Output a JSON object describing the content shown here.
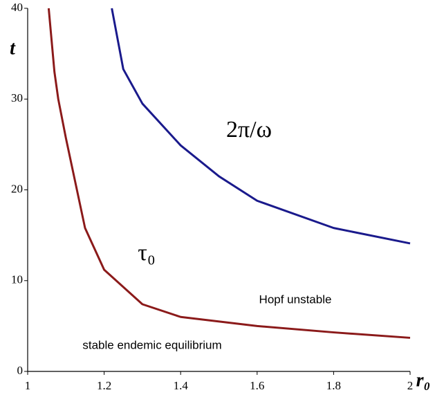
{
  "chart_data": {
    "type": "line",
    "x_label": "r₀",
    "y_label": "t",
    "xlim": [
      1,
      2
    ],
    "ylim": [
      0,
      40
    ],
    "xticks": [
      1,
      1.2,
      1.4,
      1.6,
      1.8,
      2
    ],
    "yticks": [
      0,
      10,
      20,
      30,
      40
    ],
    "series": [
      {
        "name": "τ₀",
        "color": "#8b1a1a",
        "x": [
          1.055,
          1.07,
          1.08,
          1.1,
          1.15,
          1.2,
          1.3,
          1.4,
          1.6,
          1.8,
          2
        ],
        "values": [
          40,
          33,
          30,
          25.7,
          15.8,
          11.2,
          7.4,
          6.0,
          5.0,
          4.3,
          3.7
        ]
      },
      {
        "name": "2π/ω",
        "color": "#1a1a8c",
        "x": [
          1.22,
          1.25,
          1.3,
          1.4,
          1.5,
          1.6,
          1.8,
          2
        ],
        "values": [
          40,
          33.3,
          29.5,
          24.9,
          21.5,
          18.8,
          15.8,
          14.1
        ]
      }
    ],
    "annotations": [
      "Hopf unstable",
      "stable endemic equilibrium"
    ]
  }
}
